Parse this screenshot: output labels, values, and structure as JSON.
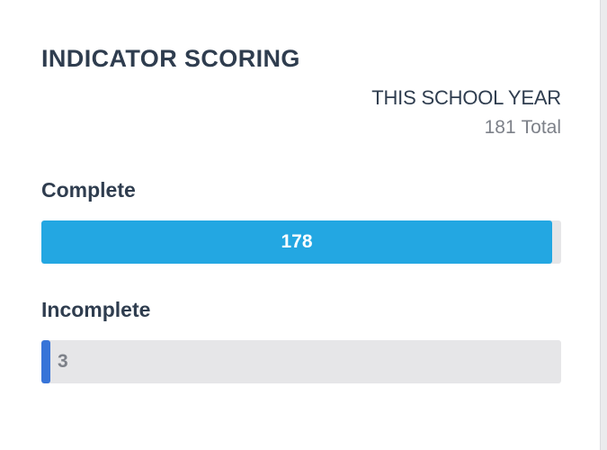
{
  "widget": {
    "title": "INDICATOR SCORING",
    "period": "THIS SCHOOL YEAR",
    "total_count": "181",
    "total_label": "Total"
  },
  "metrics": [
    {
      "label": "Complete",
      "value": "178",
      "fraction": 0.983,
      "color": "#23a7e2"
    },
    {
      "label": "Incomplete",
      "value": "3",
      "fraction": 0.017,
      "color": "#3774d8"
    }
  ],
  "colors": {
    "heading": "#2f3d4f",
    "muted": "#7d8189",
    "track": "#e6e6e8"
  }
}
